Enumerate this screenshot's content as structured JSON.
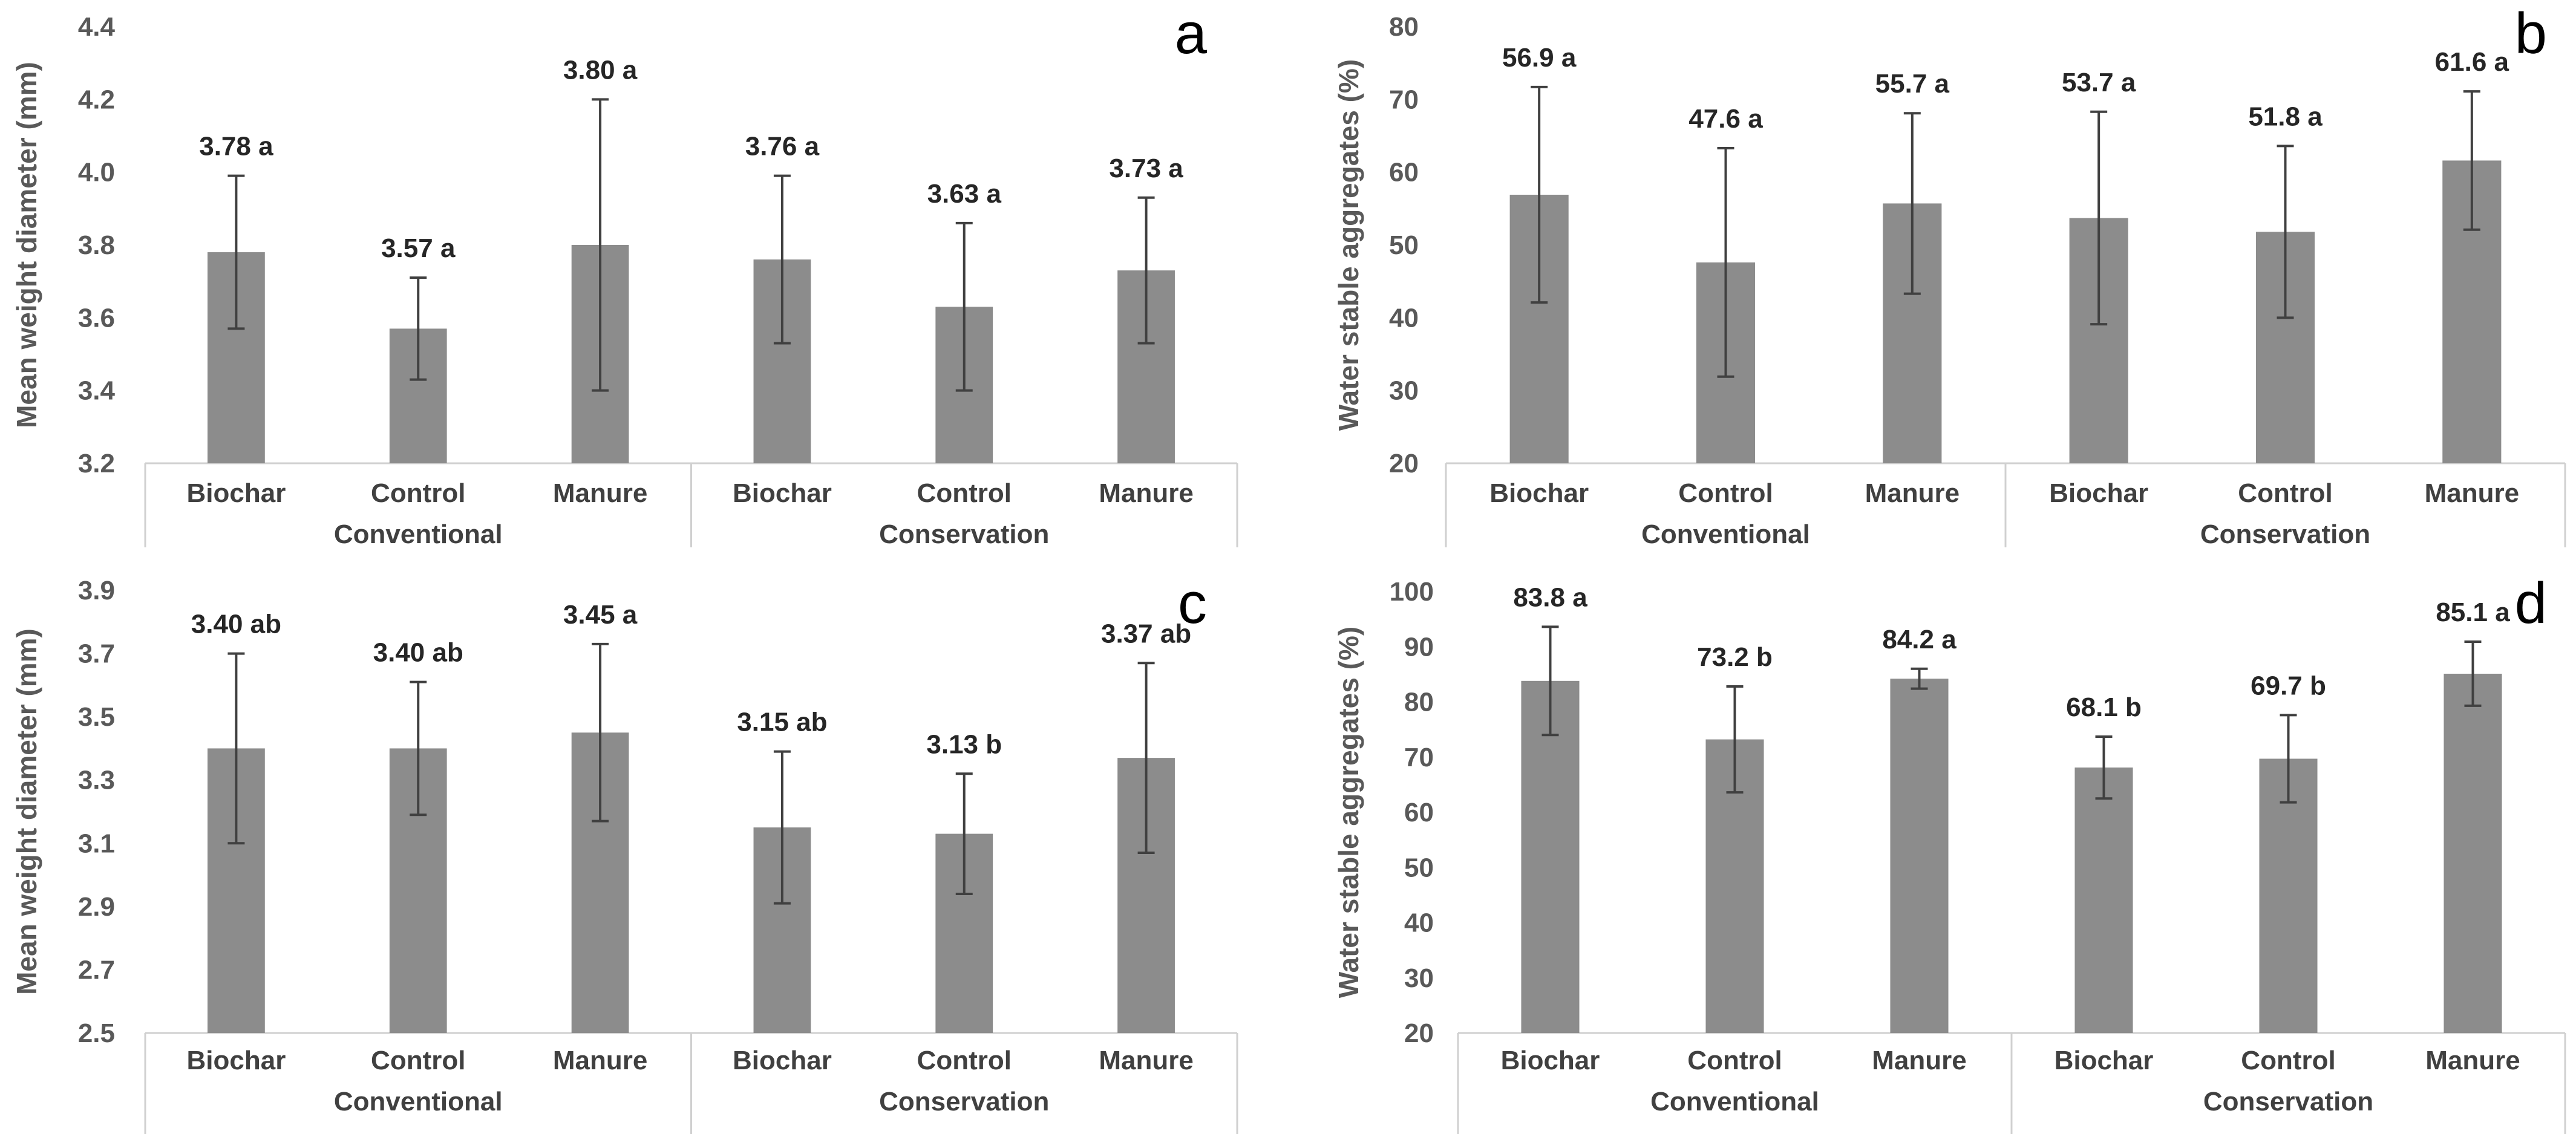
{
  "chart_data": [
    {
      "type": "bar",
      "panel": "a",
      "ylabel": "Mean weight diameter (mm)",
      "ylim": [
        3.2,
        4.4
      ],
      "yticks": [
        "3.2",
        "3.4",
        "3.6",
        "3.8",
        "4.0",
        "4.2",
        "4.4"
      ],
      "categories": [
        "Biochar",
        "Control",
        "Manure",
        "Biochar",
        "Control",
        "Manure"
      ],
      "groups": [
        {
          "name": "Conventional",
          "count": 3
        },
        {
          "name": "Conservation",
          "count": 3
        }
      ],
      "values": [
        3.78,
        3.57,
        3.8,
        3.76,
        3.63,
        3.73
      ],
      "errors": [
        0.21,
        0.14,
        0.4,
        0.23,
        0.23,
        0.2
      ],
      "labels": [
        "3.78 a",
        "3.57 a",
        "3.80 a",
        "3.76 a",
        "3.63 a",
        "3.73 a"
      ],
      "bar_color": "#8c8c8c"
    },
    {
      "type": "bar",
      "panel": "b",
      "ylabel": "Water stable aggregates (%)",
      "ylim": [
        20,
        80
      ],
      "yticks": [
        "20",
        "30",
        "40",
        "50",
        "60",
        "70",
        "80"
      ],
      "categories": [
        "Biochar",
        "Control",
        "Manure",
        "Biochar",
        "Control",
        "Manure"
      ],
      "groups": [
        {
          "name": "Conventional",
          "count": 3
        },
        {
          "name": "Conservation",
          "count": 3
        }
      ],
      "values": [
        56.9,
        47.6,
        55.7,
        53.7,
        51.8,
        61.6
      ],
      "errors": [
        14.8,
        15.7,
        12.4,
        14.6,
        11.8,
        9.5
      ],
      "labels": [
        "56.9 a",
        "47.6 a",
        "55.7 a",
        "53.7 a",
        "51.8 a",
        "61.6 a"
      ],
      "bar_color": "#8c8c8c"
    },
    {
      "type": "bar",
      "panel": "c",
      "ylabel": "Mean weight diameter (mm)",
      "ylim": [
        2.5,
        3.9
      ],
      "yticks": [
        "2.5",
        "2.7",
        "2.9",
        "3.1",
        "3.3",
        "3.5",
        "3.7",
        "3.9"
      ],
      "categories": [
        "Biochar",
        "Control",
        "Manure",
        "Biochar",
        "Control",
        "Manure"
      ],
      "groups": [
        {
          "name": "Conventional",
          "count": 3
        },
        {
          "name": "Conservation",
          "count": 3
        }
      ],
      "values": [
        3.4,
        3.4,
        3.45,
        3.15,
        3.13,
        3.37
      ],
      "errors": [
        0.3,
        0.21,
        0.28,
        0.24,
        0.19,
        0.3
      ],
      "labels": [
        "3.40 ab",
        "3.40 ab",
        "3.45 a",
        "3.15 ab",
        "3.13 b",
        "3.37 ab"
      ],
      "bar_color": "#8c8c8c"
    },
    {
      "type": "bar",
      "panel": "d",
      "ylabel": "Water stable aggregates (%)",
      "ylim": [
        20,
        100
      ],
      "yticks": [
        "20",
        "30",
        "40",
        "50",
        "60",
        "70",
        "80",
        "90",
        "100"
      ],
      "categories": [
        "Biochar",
        "Control",
        "Manure",
        "Biochar",
        "Control",
        "Manure"
      ],
      "groups": [
        {
          "name": "Conventional",
          "count": 3
        },
        {
          "name": "Conservation",
          "count": 3
        }
      ],
      "values": [
        83.8,
        73.2,
        84.2,
        68.1,
        69.7,
        85.1
      ],
      "errors": [
        9.8,
        9.6,
        1.8,
        5.6,
        7.9,
        5.8
      ],
      "labels": [
        "83.8 a",
        "73.2 b",
        "84.2 a",
        "68.1 b",
        "69.7 b",
        "85.1 a"
      ],
      "bar_color": "#8c8c8c"
    }
  ]
}
